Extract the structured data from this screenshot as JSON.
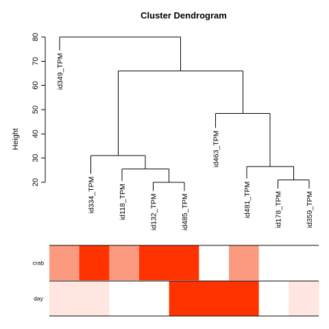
{
  "chart_data": {
    "type": "dendrogram",
    "title": "Cluster Dendrogram",
    "ylabel": "Height",
    "ylim": [
      20,
      80
    ],
    "yticks": [
      20,
      30,
      40,
      50,
      60,
      70,
      80
    ],
    "leaves": [
      "id349_TPM",
      "id334_TPM",
      "id118_TPM",
      "id132_TPM",
      "id485_TPM",
      "id463_TPM",
      "id481_TPM",
      "id178_TPM",
      "id359_TPM"
    ],
    "leaf_heights": [
      74.5,
      23.5,
      20.5,
      16.5,
      16.5,
      42.5,
      21.5,
      17.5,
      17.5
    ],
    "merges": [
      {
        "left": "id132_TPM",
        "right": "id485_TPM",
        "height": 20.0
      },
      {
        "left": "id178_TPM",
        "right": "id359_TPM",
        "height": 21.0
      },
      {
        "left": "id118_TPM",
        "right": "id132_TPM+id485_TPM",
        "height": 25.5
      },
      {
        "left": "id481_TPM",
        "right": "id178_TPM+id359_TPM",
        "height": 26.5
      },
      {
        "left": "id334_TPM",
        "right": "id118_TPM+id132_TPM+id485_TPM",
        "height": 31.0
      },
      {
        "left": "id463_TPM",
        "right": "id481_TPM+id178_TPM+id359_TPM",
        "height": 48.5
      },
      {
        "left": "id334_TPM…id485_TPM",
        "right": "id463_TPM…id359_TPM",
        "height": 66.0
      },
      {
        "left": "id349_TPM",
        "right": "rest",
        "height": 80.0
      }
    ],
    "heatmap": {
      "rows": [
        {
          "label": "crab",
          "colors": [
            "#FC9A80",
            "#FF3300",
            "#FC9A80",
            "#FF3300",
            "#FF3300",
            "#FFFFFF",
            "#FC9A80",
            "#FFFFFF",
            "#FFFFFF"
          ]
        },
        {
          "label": "day",
          "colors": [
            "#FFE6E0",
            "#FFE6E0",
            "#FFFFFF",
            "#FFFFFF",
            "#FF3300",
            "#FF3300",
            "#FF3300",
            "#FFFFFF",
            "#FFE6E0"
          ]
        }
      ]
    }
  }
}
